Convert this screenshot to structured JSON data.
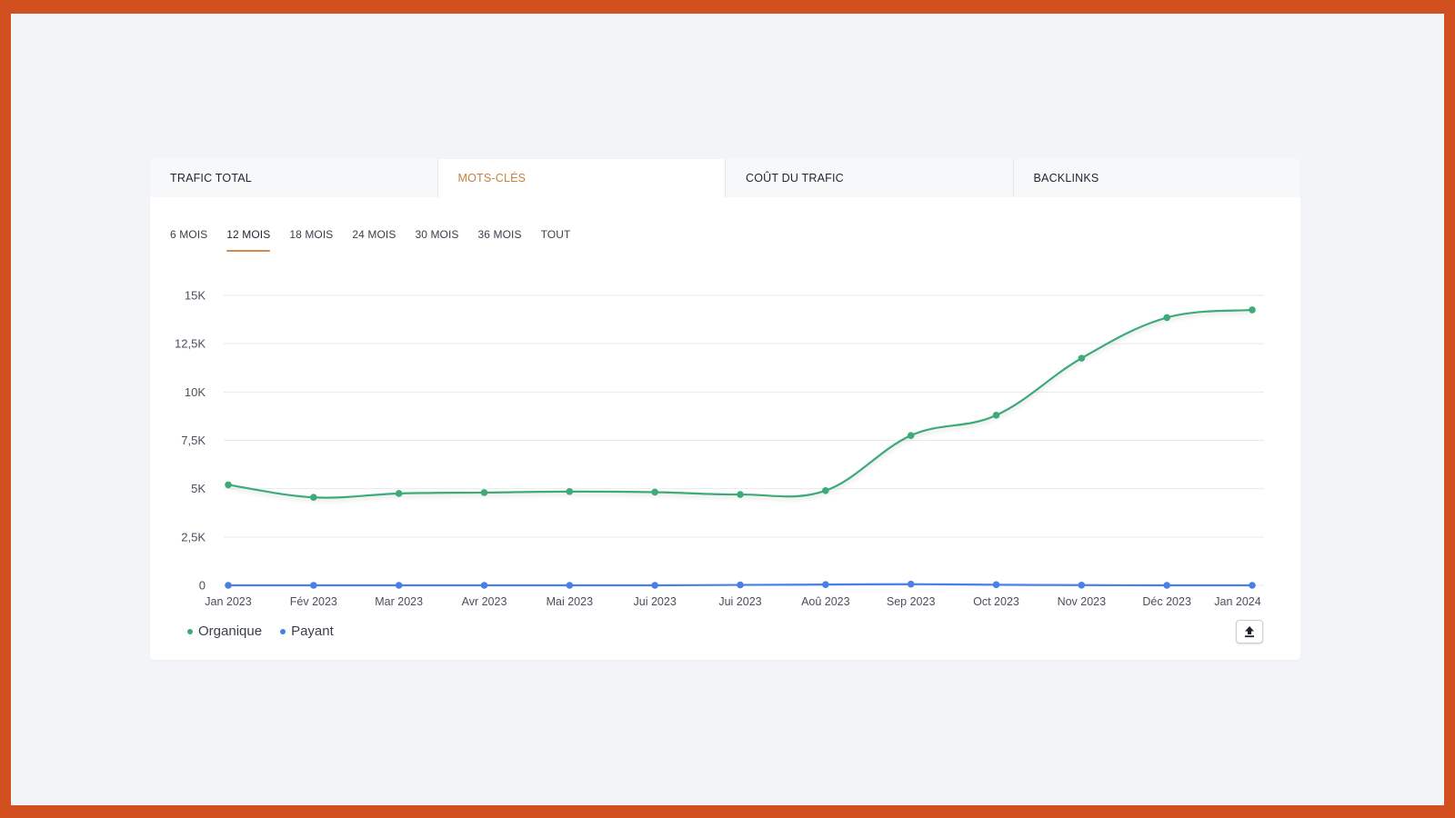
{
  "tabs": [
    {
      "label": "TRAFIC TOTAL",
      "active": false
    },
    {
      "label": "MOTS-CLÉS",
      "active": true
    },
    {
      "label": "COÛT DU TRAFIC",
      "active": false
    },
    {
      "label": "BACKLINKS",
      "active": false
    }
  ],
  "periods": [
    {
      "label": "6 MOIS",
      "active": false
    },
    {
      "label": "12 MOIS",
      "active": true
    },
    {
      "label": "18 MOIS",
      "active": false
    },
    {
      "label": "24 MOIS",
      "active": false
    },
    {
      "label": "30 MOIS",
      "active": false
    },
    {
      "label": "36 MOIS",
      "active": false
    },
    {
      "label": "TOUT",
      "active": false
    }
  ],
  "export_icon": "upload-icon",
  "colors": {
    "accent": "#d48a4c",
    "organique": "#3daa78",
    "payant": "#4a7fe6",
    "frame": "#d24f1f"
  },
  "chart_data": {
    "type": "line",
    "categories": [
      "Jan 2023",
      "Fév 2023",
      "Mar 2023",
      "Avr 2023",
      "Mai 2023",
      "Jui 2023",
      "Jui 2023",
      "Aoû 2023",
      "Sep 2023",
      "Oct 2023",
      "Nov 2023",
      "Déc 2023",
      "Jan 2024"
    ],
    "yticks": [
      "0",
      "2,5K",
      "5K",
      "7,5K",
      "10K",
      "12,5K",
      "15K"
    ],
    "ylim": [
      0,
      15000
    ],
    "grid": true,
    "legend_position": "bottom-left",
    "series": [
      {
        "name": "Organique",
        "color": "#3daa78",
        "values": [
          5200,
          4550,
          4750,
          4800,
          4850,
          4820,
          4700,
          4900,
          7750,
          8800,
          11750,
          13850,
          14250
        ]
      },
      {
        "name": "Payant",
        "color": "#4a7fe6",
        "values": [
          0,
          0,
          0,
          0,
          0,
          0,
          20,
          40,
          60,
          30,
          10,
          0,
          0
        ]
      }
    ]
  }
}
